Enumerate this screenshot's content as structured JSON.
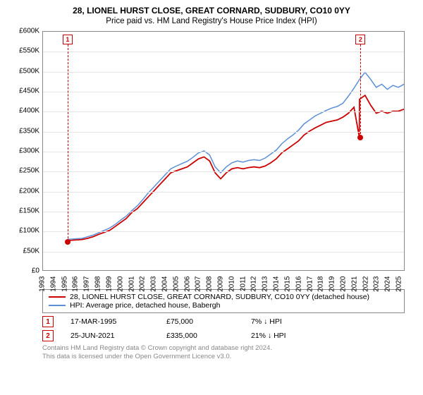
{
  "title": "28, LIONEL HURST CLOSE, GREAT CORNARD, SUDBURY, CO10 0YY",
  "subtitle": "Price paid vs. HM Land Registry's House Price Index (HPI)",
  "chart": {
    "type": "line",
    "background_color": "#ffffff",
    "border_color": "#888888",
    "grid_color": "#e5e5e5",
    "ylim": [
      0,
      600000
    ],
    "ytick_step": 50000,
    "ytick_format": "£{v}K",
    "yticks": [
      "£0",
      "£50K",
      "£100K",
      "£150K",
      "£200K",
      "£250K",
      "£300K",
      "£350K",
      "£400K",
      "£450K",
      "£500K",
      "£550K",
      "£600K"
    ],
    "xlim": [
      1993,
      2025.5
    ],
    "xticks_years": [
      1993,
      1994,
      1995,
      1996,
      1997,
      1998,
      1999,
      2000,
      2001,
      2002,
      2003,
      2004,
      2005,
      2006,
      2007,
      2008,
      2009,
      2010,
      2011,
      2012,
      2013,
      2014,
      2015,
      2016,
      2017,
      2018,
      2019,
      2020,
      2021,
      2022,
      2023,
      2024,
      2025
    ],
    "label_fontsize": 10,
    "series": [
      {
        "name": "28, LIONEL HURST CLOSE, GREAT CORNARD, SUDBURY, CO10 0YY (detached house)",
        "color": "#cc0000",
        "line_width": 1.8,
        "points": [
          [
            1995.21,
            75000
          ],
          [
            1995.5,
            75000
          ],
          [
            1996,
            76000
          ],
          [
            1996.5,
            77000
          ],
          [
            1997,
            80000
          ],
          [
            1997.5,
            84000
          ],
          [
            1998,
            90000
          ],
          [
            1998.5,
            95000
          ],
          [
            1999,
            100000
          ],
          [
            1999.5,
            110000
          ],
          [
            2000,
            120000
          ],
          [
            2000.5,
            130000
          ],
          [
            2001,
            145000
          ],
          [
            2001.5,
            155000
          ],
          [
            2002,
            170000
          ],
          [
            2002.5,
            185000
          ],
          [
            2003,
            200000
          ],
          [
            2003.5,
            215000
          ],
          [
            2004,
            230000
          ],
          [
            2004.5,
            245000
          ],
          [
            2005,
            250000
          ],
          [
            2005.5,
            255000
          ],
          [
            2006,
            260000
          ],
          [
            2006.5,
            270000
          ],
          [
            2007,
            280000
          ],
          [
            2007.5,
            285000
          ],
          [
            2008,
            275000
          ],
          [
            2008.5,
            245000
          ],
          [
            2009,
            230000
          ],
          [
            2009.5,
            245000
          ],
          [
            2010,
            255000
          ],
          [
            2010.5,
            258000
          ],
          [
            2011,
            255000
          ],
          [
            2011.5,
            258000
          ],
          [
            2012,
            260000
          ],
          [
            2012.5,
            258000
          ],
          [
            2013,
            262000
          ],
          [
            2013.5,
            270000
          ],
          [
            2014,
            280000
          ],
          [
            2014.5,
            295000
          ],
          [
            2015,
            305000
          ],
          [
            2015.5,
            315000
          ],
          [
            2016,
            325000
          ],
          [
            2016.5,
            340000
          ],
          [
            2017,
            350000
          ],
          [
            2017.5,
            358000
          ],
          [
            2018,
            365000
          ],
          [
            2018.5,
            372000
          ],
          [
            2019,
            375000
          ],
          [
            2019.5,
            378000
          ],
          [
            2020,
            385000
          ],
          [
            2020.5,
            395000
          ],
          [
            2021,
            410000
          ],
          [
            2021.48,
            335000
          ],
          [
            2021.5,
            430000
          ],
          [
            2022,
            440000
          ],
          [
            2022.5,
            415000
          ],
          [
            2023,
            395000
          ],
          [
            2023.5,
            400000
          ],
          [
            2024,
            395000
          ],
          [
            2024.5,
            400000
          ],
          [
            2025,
            400000
          ],
          [
            2025.5,
            405000
          ]
        ]
      },
      {
        "name": "HPI: Average price, detached house, Babergh",
        "color": "#5b8fd6",
        "line_width": 1.5,
        "points": [
          [
            1995.21,
            78000
          ],
          [
            1995.5,
            78000
          ],
          [
            1996,
            79000
          ],
          [
            1996.5,
            80000
          ],
          [
            1997,
            84000
          ],
          [
            1997.5,
            88000
          ],
          [
            1998,
            94000
          ],
          [
            1998.5,
            100000
          ],
          [
            1999,
            106000
          ],
          [
            1999.5,
            115000
          ],
          [
            2000,
            126000
          ],
          [
            2000.5,
            136000
          ],
          [
            2001,
            150000
          ],
          [
            2001.5,
            162000
          ],
          [
            2002,
            178000
          ],
          [
            2002.5,
            195000
          ],
          [
            2003,
            210000
          ],
          [
            2003.5,
            225000
          ],
          [
            2004,
            240000
          ],
          [
            2004.5,
            255000
          ],
          [
            2005,
            262000
          ],
          [
            2005.5,
            268000
          ],
          [
            2006,
            274000
          ],
          [
            2006.5,
            284000
          ],
          [
            2007,
            295000
          ],
          [
            2007.5,
            300000
          ],
          [
            2008,
            290000
          ],
          [
            2008.5,
            260000
          ],
          [
            2009,
            245000
          ],
          [
            2009.5,
            260000
          ],
          [
            2010,
            270000
          ],
          [
            2010.5,
            275000
          ],
          [
            2011,
            272000
          ],
          [
            2011.5,
            276000
          ],
          [
            2012,
            278000
          ],
          [
            2012.5,
            276000
          ],
          [
            2013,
            282000
          ],
          [
            2013.5,
            292000
          ],
          [
            2014,
            302000
          ],
          [
            2014.5,
            318000
          ],
          [
            2015,
            330000
          ],
          [
            2015.5,
            340000
          ],
          [
            2016,
            352000
          ],
          [
            2016.5,
            368000
          ],
          [
            2017,
            378000
          ],
          [
            2017.5,
            388000
          ],
          [
            2018,
            395000
          ],
          [
            2018.5,
            402000
          ],
          [
            2019,
            408000
          ],
          [
            2019.5,
            412000
          ],
          [
            2020,
            420000
          ],
          [
            2020.5,
            438000
          ],
          [
            2021,
            458000
          ],
          [
            2021.5,
            480000
          ],
          [
            2022,
            498000
          ],
          [
            2022.5,
            480000
          ],
          [
            2023,
            460000
          ],
          [
            2023.5,
            468000
          ],
          [
            2024,
            455000
          ],
          [
            2024.5,
            465000
          ],
          [
            2025,
            460000
          ],
          [
            2025.5,
            468000
          ]
        ]
      }
    ],
    "markers": [
      {
        "id": "1",
        "x": 1995.21,
        "y": 75000,
        "color": "#cc0000"
      },
      {
        "id": "2",
        "x": 2021.48,
        "y": 335000,
        "color": "#cc0000"
      }
    ]
  },
  "legend": {
    "border_color": "#888888",
    "rows": [
      {
        "color": "#cc0000",
        "label": "28, LIONEL HURST CLOSE, GREAT CORNARD, SUDBURY, CO10 0YY (detached house)"
      },
      {
        "color": "#5b8fd6",
        "label": "HPI: Average price, detached house, Babergh"
      }
    ]
  },
  "transactions": [
    {
      "id": "1",
      "date": "17-MAR-1995",
      "price": "£75,000",
      "pct": "7%",
      "arrow": "↓",
      "vs": "HPI",
      "color": "#cc0000"
    },
    {
      "id": "2",
      "date": "25-JUN-2021",
      "price": "£335,000",
      "pct": "21%",
      "arrow": "↓",
      "vs": "HPI",
      "color": "#cc0000"
    }
  ],
  "footer_line1": "Contains HM Land Registry data © Crown copyright and database right 2024.",
  "footer_line2": "This data is licensed under the Open Government Licence v3.0."
}
